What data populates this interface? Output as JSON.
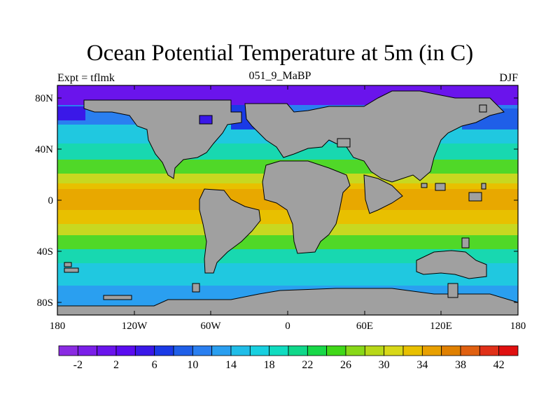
{
  "title": "Ocean Potential Temperature at 5m (in C)",
  "subtitle_left": "Expt = tflmk",
  "subtitle_center": "051_9_MaBP",
  "subtitle_right": "DJF",
  "x_ticks": [
    "180",
    "120W",
    "60W",
    "0",
    "60E",
    "120E",
    "180"
  ],
  "y_ticks": [
    "80N",
    "40N",
    "0",
    "40S",
    "80S"
  ],
  "colorbar": {
    "colors": [
      "#8a2be2",
      "#7a1fe8",
      "#6a14ec",
      "#5a0cf0",
      "#3a18e8",
      "#1a3ae6",
      "#1f5fe8",
      "#2a7ff0",
      "#2a9ff0",
      "#20bde8",
      "#18d0e0",
      "#10dcc0",
      "#10d88a",
      "#18d848",
      "#40d818",
      "#88d818",
      "#b8d818",
      "#d8d818",
      "#e8c000",
      "#e8a000",
      "#e08000",
      "#e06010",
      "#e03018",
      "#e01010"
    ],
    "labels": [
      "-2",
      "2",
      "6",
      "10",
      "14",
      "18",
      "22",
      "26",
      "30",
      "34",
      "38",
      "42"
    ]
  },
  "map_colors": {
    "land": "#a0a0a0",
    "polar": "#6a14ec",
    "cold": "#2a7ff0",
    "cool": "#20c8e0",
    "mild": "#18d8b0",
    "warm_green": "#50d828",
    "subtropical": "#c8d820",
    "tropical": "#e8c000",
    "hot": "#e8a800"
  }
}
